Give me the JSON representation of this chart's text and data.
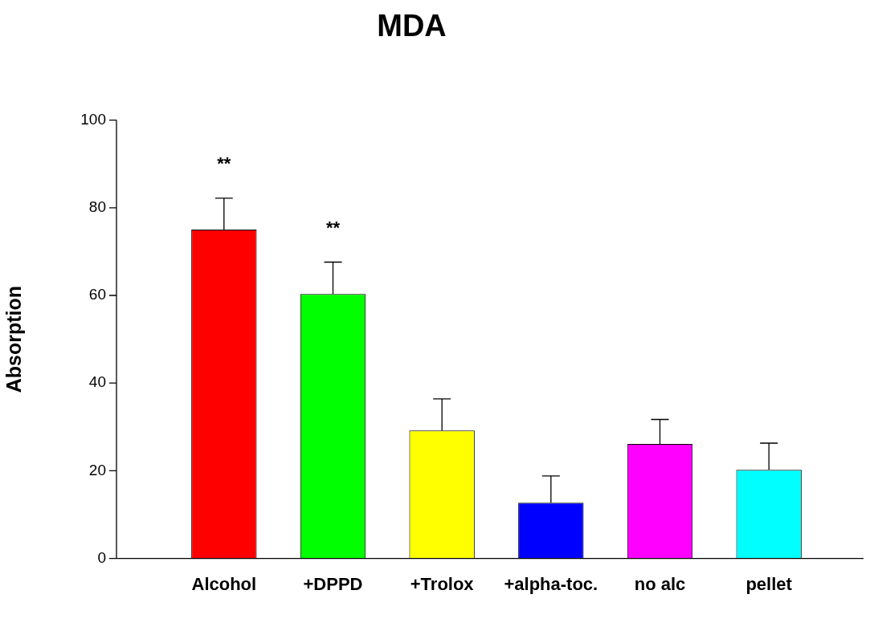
{
  "chart_data": {
    "type": "bar",
    "title": "MDA",
    "ylabel": "Absorption",
    "categories": [
      "Alcohol",
      "+DPPD",
      "+Trolox",
      "+alpha-toc.",
      "no alc",
      "pellet"
    ],
    "values": [
      75,
      60.3,
      29.2,
      12.7,
      26.1,
      20.2
    ],
    "colors": [
      "#ff0000",
      "#00ff00",
      "#ffff00",
      "#0000ff",
      "#ff00ff",
      "#00ffff"
    ],
    "errors": [
      [
        75,
        82.2
      ],
      [
        60.3,
        67.6
      ],
      [
        29.2,
        36.4
      ],
      [
        12.7,
        18.8
      ],
      [
        26.1,
        31.7
      ],
      [
        20.2,
        26.3
      ]
    ],
    "ylim": [
      0,
      100
    ],
    "yticks": [
      0,
      20,
      40,
      60,
      80,
      100
    ],
    "grid": false,
    "legend": false,
    "annotations": [
      "**",
      "**"
    ]
  }
}
